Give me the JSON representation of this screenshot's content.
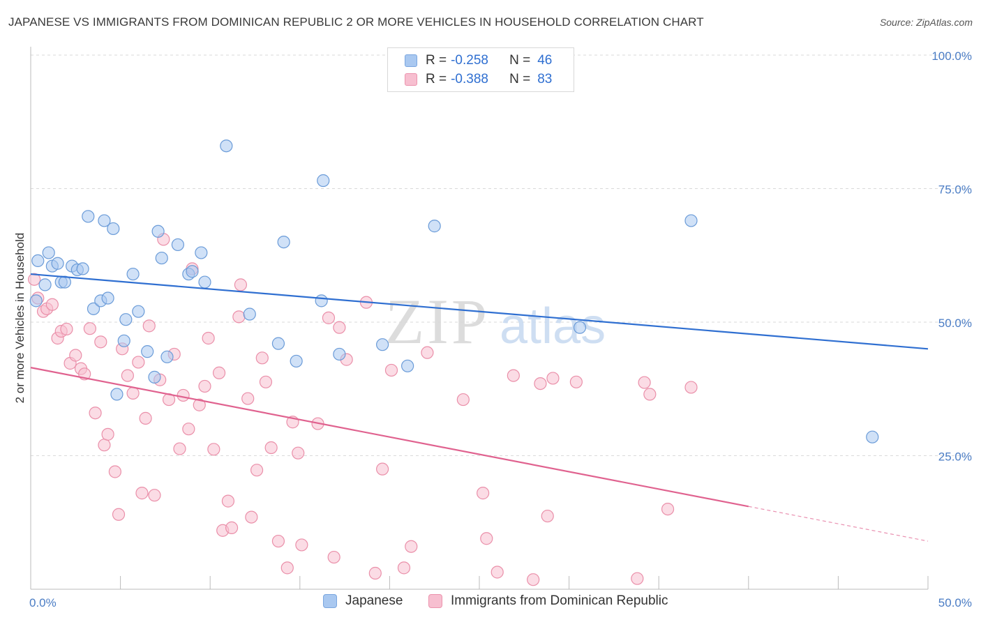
{
  "title": "JAPANESE VS IMMIGRANTS FROM DOMINICAN REPUBLIC 2 OR MORE VEHICLES IN HOUSEHOLD CORRELATION CHART",
  "source": "Source: ZipAtlas.com",
  "watermark": {
    "part1": "ZIP",
    "part2": "atlas"
  },
  "legend_top": {
    "rows": [
      {
        "r_label": "R =",
        "r_value": "-0.258",
        "n_label": "N =",
        "n_value": "46",
        "color": "#a9c8f0",
        "border": "#7aa6df"
      },
      {
        "r_label": "R =",
        "r_value": "-0.388",
        "n_label": "N =",
        "n_value": "83",
        "color": "#f7bfd0",
        "border": "#ec93ad"
      }
    ]
  },
  "legend_bottom": {
    "items": [
      {
        "label": "Japanese",
        "color": "#a9c8f0",
        "border": "#7aa6df"
      },
      {
        "label": "Immigrants from Dominican Republic",
        "color": "#f7bfd0",
        "border": "#ec93ad"
      }
    ]
  },
  "chart_data": {
    "type": "scatter",
    "title": "JAPANESE VS IMMIGRANTS FROM DOMINICAN REPUBLIC 2 OR MORE VEHICLES IN HOUSEHOLD CORRELATION CHART",
    "xlabel": "",
    "ylabel": "2 or more Vehicles in Household",
    "xlim": [
      0,
      50
    ],
    "ylim": [
      0,
      100
    ],
    "x_tick_labels": [
      {
        "value": 0,
        "label": "0.0%"
      },
      {
        "value": 50,
        "label": "50.0%"
      }
    ],
    "y_tick_labels": [
      {
        "value": 25,
        "label": "25.0%"
      },
      {
        "value": 50,
        "label": "50.0%"
      },
      {
        "value": 75,
        "label": "75.0%"
      },
      {
        "value": 100,
        "label": "100.0%"
      }
    ],
    "grid": true,
    "legend_position": "top-center",
    "series": [
      {
        "name": "Japanese",
        "color": "#a9c8f0",
        "edge_color": "#6a9bd8",
        "line_color": "#2f6fd1",
        "r": -0.258,
        "n": 46,
        "trend": {
          "x": [
            0,
            50
          ],
          "y": [
            59.0,
            45.0
          ]
        },
        "points": [
          [
            0.3,
            54.0
          ],
          [
            0.4,
            61.5
          ],
          [
            0.8,
            57.0
          ],
          [
            1.0,
            63.0
          ],
          [
            1.2,
            60.5
          ],
          [
            1.5,
            61.0
          ],
          [
            1.7,
            57.5
          ],
          [
            1.9,
            57.5
          ],
          [
            2.3,
            60.5
          ],
          [
            2.6,
            59.8
          ],
          [
            2.9,
            60.0
          ],
          [
            3.2,
            69.8
          ],
          [
            3.5,
            52.5
          ],
          [
            3.9,
            54.0
          ],
          [
            4.1,
            69.0
          ],
          [
            4.3,
            54.5
          ],
          [
            4.6,
            67.5
          ],
          [
            4.8,
            36.5
          ],
          [
            5.2,
            46.5
          ],
          [
            5.3,
            50.5
          ],
          [
            5.7,
            59.0
          ],
          [
            6.0,
            52.0
          ],
          [
            6.5,
            44.5
          ],
          [
            6.9,
            39.7
          ],
          [
            7.1,
            67.0
          ],
          [
            7.3,
            62.0
          ],
          [
            7.6,
            43.5
          ],
          [
            8.2,
            64.5
          ],
          [
            8.8,
            59.0
          ],
          [
            9.0,
            59.5
          ],
          [
            9.5,
            63.0
          ],
          [
            9.7,
            57.5
          ],
          [
            10.9,
            83.0
          ],
          [
            12.2,
            51.5
          ],
          [
            13.8,
            46.0
          ],
          [
            14.1,
            65.0
          ],
          [
            14.8,
            42.7
          ],
          [
            16.2,
            54.0
          ],
          [
            16.3,
            76.5
          ],
          [
            17.2,
            44.0
          ],
          [
            19.6,
            45.8
          ],
          [
            21.0,
            41.8
          ],
          [
            22.5,
            68.0
          ],
          [
            30.6,
            49.0
          ],
          [
            36.8,
            69.0
          ],
          [
            46.9,
            28.5
          ]
        ]
      },
      {
        "name": "Immigrants from Dominican Republic",
        "color": "#f7bfd0",
        "edge_color": "#ea8fa9",
        "line_color": "#e0628f",
        "r": -0.388,
        "n": 83,
        "trend": {
          "x": [
            0,
            50
          ],
          "y": [
            41.5,
            9.0
          ],
          "solid_until_x": 40.0
        },
        "points": [
          [
            0.2,
            58.0
          ],
          [
            0.4,
            54.5
          ],
          [
            0.7,
            52.0
          ],
          [
            0.9,
            52.5
          ],
          [
            1.2,
            53.3
          ],
          [
            1.5,
            47.0
          ],
          [
            1.7,
            48.3
          ],
          [
            2.0,
            48.7
          ],
          [
            2.2,
            42.3
          ],
          [
            2.5,
            43.8
          ],
          [
            2.8,
            41.3
          ],
          [
            3.0,
            40.3
          ],
          [
            3.3,
            48.8
          ],
          [
            3.6,
            33.0
          ],
          [
            3.9,
            46.3
          ],
          [
            4.1,
            27.0
          ],
          [
            4.3,
            29.0
          ],
          [
            4.7,
            22.0
          ],
          [
            4.9,
            14.0
          ],
          [
            5.1,
            45.0
          ],
          [
            5.4,
            40.0
          ],
          [
            5.7,
            36.7
          ],
          [
            6.0,
            42.5
          ],
          [
            6.2,
            18.0
          ],
          [
            6.4,
            32.0
          ],
          [
            6.6,
            49.3
          ],
          [
            6.9,
            17.6
          ],
          [
            7.2,
            39.2
          ],
          [
            7.4,
            65.5
          ],
          [
            7.7,
            35.5
          ],
          [
            8.0,
            44.0
          ],
          [
            8.3,
            26.3
          ],
          [
            8.5,
            36.3
          ],
          [
            8.8,
            30.0
          ],
          [
            9.0,
            60.0
          ],
          [
            9.4,
            34.5
          ],
          [
            9.7,
            38.0
          ],
          [
            9.9,
            47.0
          ],
          [
            10.2,
            26.2
          ],
          [
            10.5,
            40.5
          ],
          [
            10.7,
            11.0
          ],
          [
            11.0,
            16.5
          ],
          [
            11.2,
            11.5
          ],
          [
            11.6,
            51.0
          ],
          [
            11.7,
            57.0
          ],
          [
            12.1,
            35.7
          ],
          [
            12.3,
            13.5
          ],
          [
            12.6,
            22.3
          ],
          [
            12.9,
            43.3
          ],
          [
            13.1,
            38.8
          ],
          [
            13.4,
            26.5
          ],
          [
            13.8,
            9.0
          ],
          [
            14.3,
            4.0
          ],
          [
            14.6,
            31.3
          ],
          [
            14.9,
            25.5
          ],
          [
            15.1,
            8.3
          ],
          [
            16.0,
            31.0
          ],
          [
            16.6,
            50.8
          ],
          [
            16.9,
            6.0
          ],
          [
            17.2,
            49.0
          ],
          [
            17.6,
            43.0
          ],
          [
            18.7,
            53.7
          ],
          [
            19.2,
            3.0
          ],
          [
            19.6,
            22.5
          ],
          [
            20.1,
            41.0
          ],
          [
            20.8,
            4.0
          ],
          [
            21.2,
            8.0
          ],
          [
            22.1,
            44.3
          ],
          [
            24.1,
            35.5
          ],
          [
            25.2,
            18.0
          ],
          [
            25.4,
            9.5
          ],
          [
            26.0,
            3.2
          ],
          [
            26.9,
            40.0
          ],
          [
            28.0,
            1.8
          ],
          [
            28.4,
            38.5
          ],
          [
            28.8,
            13.7
          ],
          [
            29.1,
            39.5
          ],
          [
            30.4,
            38.8
          ],
          [
            33.8,
            2.0
          ],
          [
            34.2,
            38.7
          ],
          [
            34.5,
            36.5
          ],
          [
            35.5,
            15.0
          ],
          [
            36.8,
            37.8
          ]
        ]
      }
    ]
  }
}
